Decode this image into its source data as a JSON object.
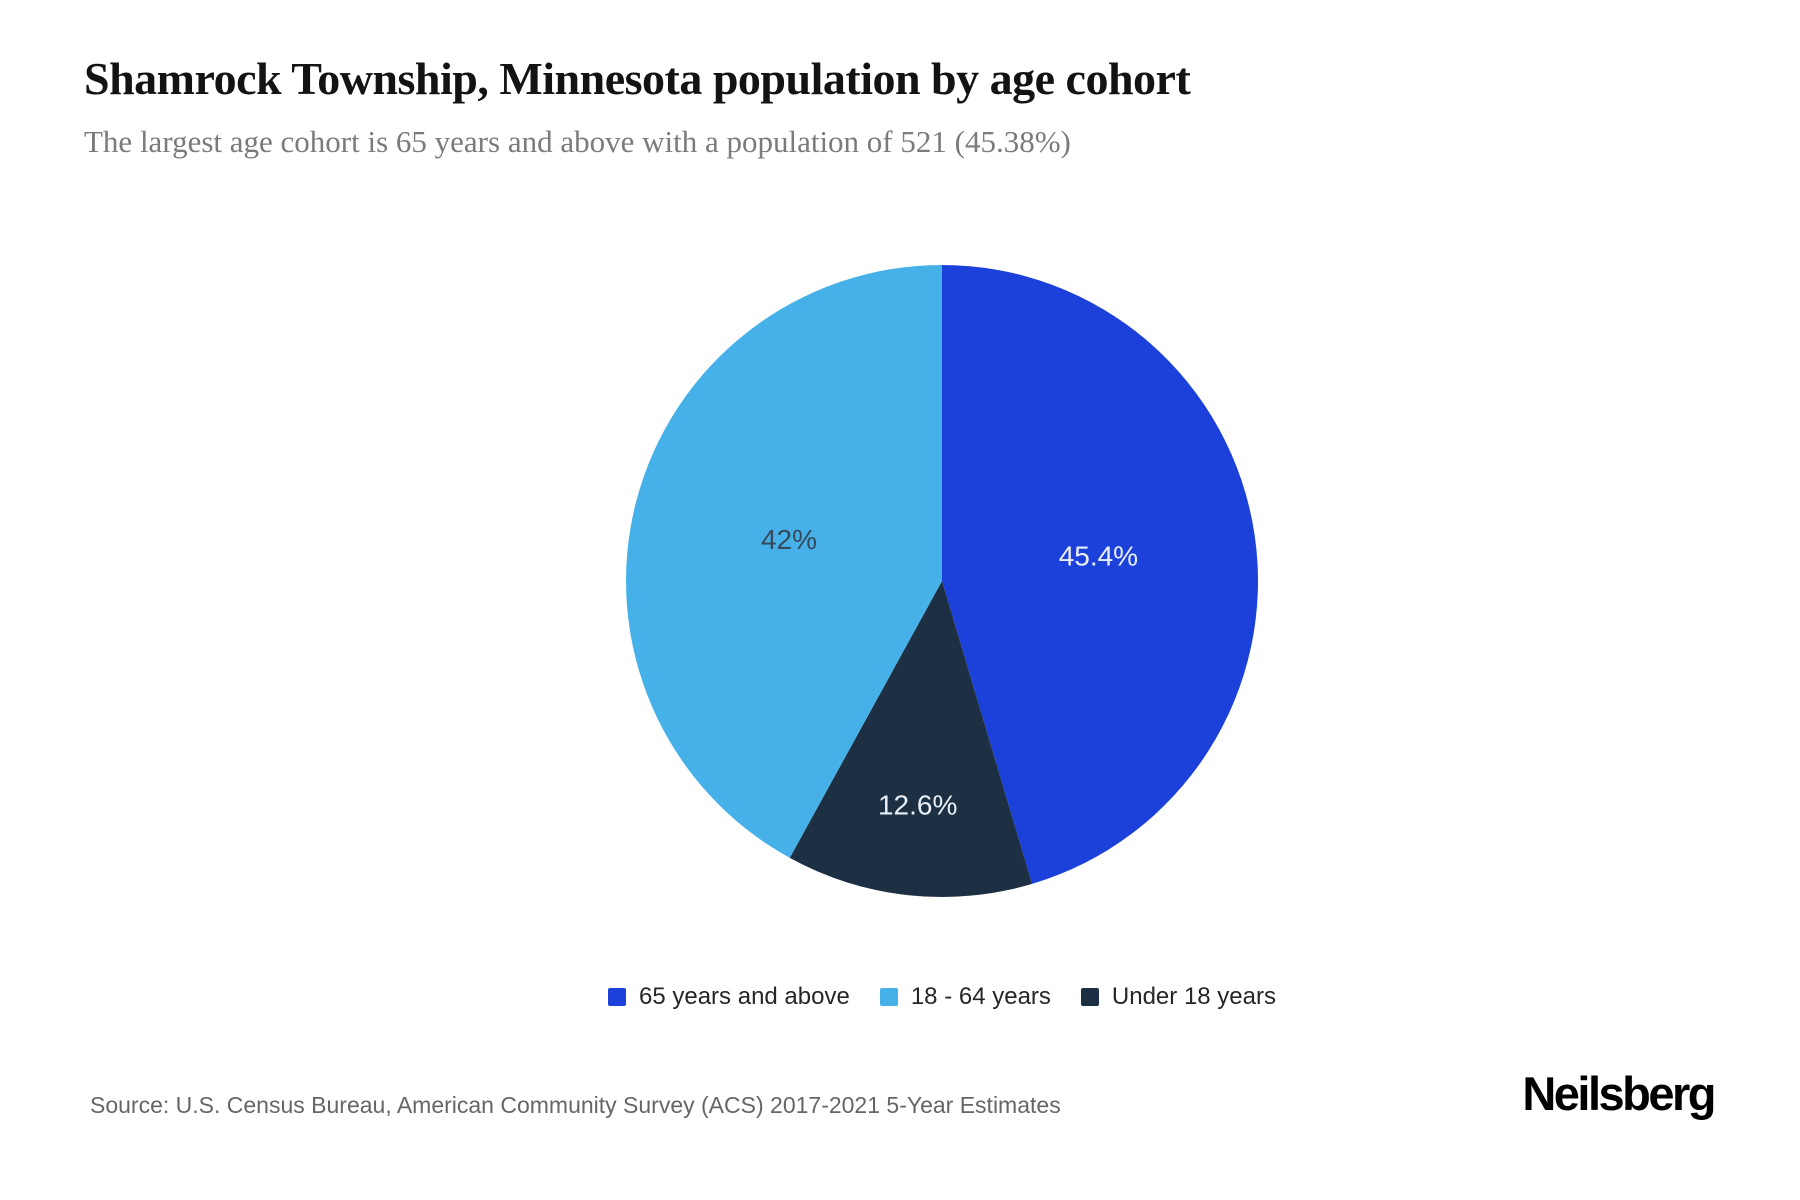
{
  "chart_data": {
    "type": "pie",
    "title": "Shamrock Township, Minnesota population by age cohort",
    "subtitle": "The largest age cohort is 65 years and above with a population of 521 (45.38%)",
    "start_angle_deg": 0,
    "direction": "clockwise",
    "legend_position": "bottom",
    "label_radius_frac": [
      0.5,
      0.72,
      0.5
    ],
    "slices": [
      {
        "label": "65 years and above",
        "value_pct": 45.4,
        "display": "45.4%",
        "color": "#1c41db",
        "label_color": "#e9eff8"
      },
      {
        "label": "Under 18 years",
        "value_pct": 12.6,
        "display": "12.6%",
        "color": "#1d2f42",
        "label_color": "#e9eff8"
      },
      {
        "label": "18 - 64 years",
        "value_pct": 42,
        "display": "42%",
        "color": "#45b1e8",
        "label_color": "#37495a"
      }
    ],
    "legend": [
      {
        "label": "65 years and above",
        "color": "#1c41db"
      },
      {
        "label": "18 - 64 years",
        "color": "#45b1e8"
      },
      {
        "label": "Under 18 years",
        "color": "#1d2f42"
      }
    ]
  },
  "footer": {
    "source": "Source: U.S. Census Bureau, American Community Survey (ACS) 2017-2021 5-Year Estimates",
    "brand": "Neilsberg"
  }
}
